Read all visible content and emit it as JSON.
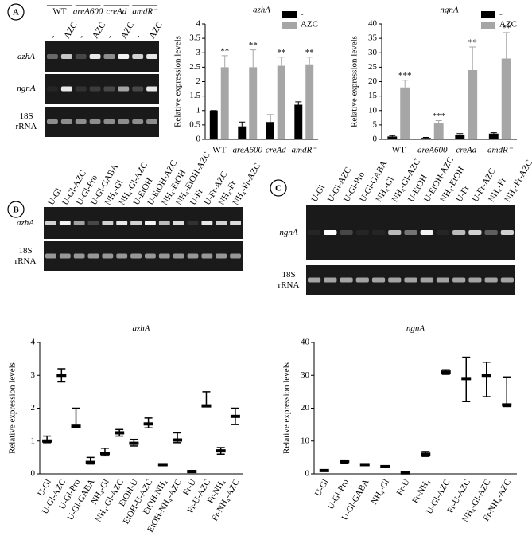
{
  "panel_labels": [
    "A",
    "B",
    "C"
  ],
  "gels": [
    {
      "groups": [
        "WT",
        "areA600",
        "creAd",
        "amdR⁻"
      ],
      "lanes": [
        "-",
        "AZC",
        "-",
        "AZC",
        "-",
        "AZC",
        "-",
        "AZC"
      ],
      "rows": [
        "azhA",
        "ngnA",
        "18S rRNA"
      ]
    },
    {
      "lanes": [
        "U-Gl",
        "U-Gl-AZC",
        "U-Gl-Pro",
        "U-Gl-GABA",
        "NH₄-Gl",
        "NH₄-Gl-AZC",
        "U-EtOH",
        "U-EtOH-AZC",
        "NH₄-EtOH",
        "NH₄-EtOH-AZC",
        "U-Fr",
        "U-Fr-AZC",
        "NH₄-Fr",
        "NH₄-Fr-AZC"
      ],
      "rows": [
        "azhA",
        "18S rRNA"
      ]
    },
    {
      "lanes": [
        "U-Gl",
        "U-Gl-AZC",
        "U-Gl-Pro",
        "U-Gl-GABA",
        "NH₄-Gl",
        "NH₄-Gl-AZC",
        "U-EtOH",
        "U-EtOH-AZC",
        "NH₄-EtOH",
        "U-Fr",
        "U-Fr-AZC",
        "NH₄-Fr",
        "NH₄-Fr-AZC"
      ],
      "rows": [
        "ngnA",
        "18S rRNA"
      ]
    }
  ],
  "chart_data": [
    {
      "type": "bar",
      "title": "azhA",
      "ylabel": "Relative expression levels",
      "categories": [
        "WT",
        "areA600",
        "creAd",
        "amdR⁻"
      ],
      "series": [
        {
          "name": "-",
          "color": "#000000",
          "values": [
            1.0,
            0.45,
            0.6,
            1.2
          ],
          "errors": [
            0,
            0.15,
            0.25,
            0.1
          ]
        },
        {
          "name": "AZC",
          "color": "#a6a6a6",
          "values": [
            2.5,
            2.5,
            2.55,
            2.6
          ],
          "errors": [
            0.4,
            0.6,
            0.3,
            0.25
          ],
          "annotations": [
            "**",
            "**",
            "**",
            "**"
          ]
        }
      ],
      "ylim": [
        0,
        4
      ],
      "yticks": [
        0,
        0.5,
        1,
        1.5,
        2,
        2.5,
        3,
        3.5,
        4
      ],
      "legend": "top right"
    },
    {
      "type": "bar",
      "title": "ngnA",
      "ylabel": "Relative expression levels",
      "categories": [
        "WT",
        "areA600",
        "creAd",
        "amdR⁻"
      ],
      "series": [
        {
          "name": "-",
          "color": "#000000",
          "values": [
            1,
            0.5,
            1.5,
            2
          ],
          "errors": [
            0.3,
            0.2,
            0.5,
            0.3
          ]
        },
        {
          "name": "AZC",
          "color": "#a6a6a6",
          "values": [
            18,
            5.5,
            24,
            28
          ],
          "errors": [
            2.5,
            1,
            8,
            9
          ],
          "annotations": [
            "***",
            "***",
            "**",
            "**"
          ]
        }
      ],
      "ylim": [
        0,
        40
      ],
      "yticks": [
        0,
        5,
        10,
        15,
        20,
        25,
        30,
        35,
        40
      ],
      "legend": "top right"
    },
    {
      "type": "range",
      "title": "azhA",
      "ylabel": "Relative expression levels",
      "categories": [
        "U-Gl",
        "U-Gl-AZC",
        "U-Gl-Pro",
        "U-Gl-GABA",
        "NH₄-Gl",
        "NH₄-Gl-AZC",
        "EtOH-U",
        "EtOH-U-AZC",
        "EtOH-NH₄",
        "EtOH-NH₄-AZC",
        "Fr-U",
        "Fr-U-AZC",
        "Fr-NH₄",
        "Fr-NH₄-AZC"
      ],
      "values": [
        1.0,
        3.0,
        1.45,
        0.35,
        0.62,
        1.25,
        0.93,
        1.52,
        0.28,
        1.03,
        0.07,
        2.07,
        0.7,
        1.75
      ],
      "min": [
        0.95,
        2.8,
        1.45,
        0.3,
        0.55,
        1.15,
        0.85,
        1.4,
        0.25,
        0.95,
        0.05,
        2.05,
        0.6,
        1.5
      ],
      "max": [
        1.15,
        3.2,
        2.0,
        0.5,
        0.78,
        1.35,
        1.05,
        1.7,
        0.3,
        1.25,
        0.1,
        2.5,
        0.8,
        2.0
      ],
      "color": "#000000",
      "ylim": [
        0,
        4
      ],
      "yticks": [
        0,
        1,
        2,
        3,
        4
      ]
    },
    {
      "type": "range",
      "title": "ngnA",
      "ylabel": "Relative expression levels",
      "categories": [
        "U-Gl",
        "U-Gl-Pro",
        "U-Gl-GABA",
        "NH₄-Gl",
        "Fr-U",
        "Fr-NH₄",
        "U-Gl-AZC",
        "Fr-U-AZC",
        "NH₄-Gl-AZC",
        "Fr-NH₄-AZC"
      ],
      "values": [
        1,
        3.8,
        2.8,
        2.2,
        0.3,
        6,
        31,
        29,
        30,
        21
      ],
      "min": [
        0.8,
        3.3,
        2.6,
        2.0,
        0.2,
        5.3,
        30.3,
        22,
        23.5,
        20.5
      ],
      "max": [
        1.2,
        4.2,
        3.0,
        2.3,
        0.4,
        6.8,
        31.7,
        35.5,
        34,
        29.5
      ],
      "color": "#000000",
      "ylim": [
        0,
        40
      ],
      "yticks": [
        0,
        10,
        20,
        30,
        40
      ]
    }
  ]
}
